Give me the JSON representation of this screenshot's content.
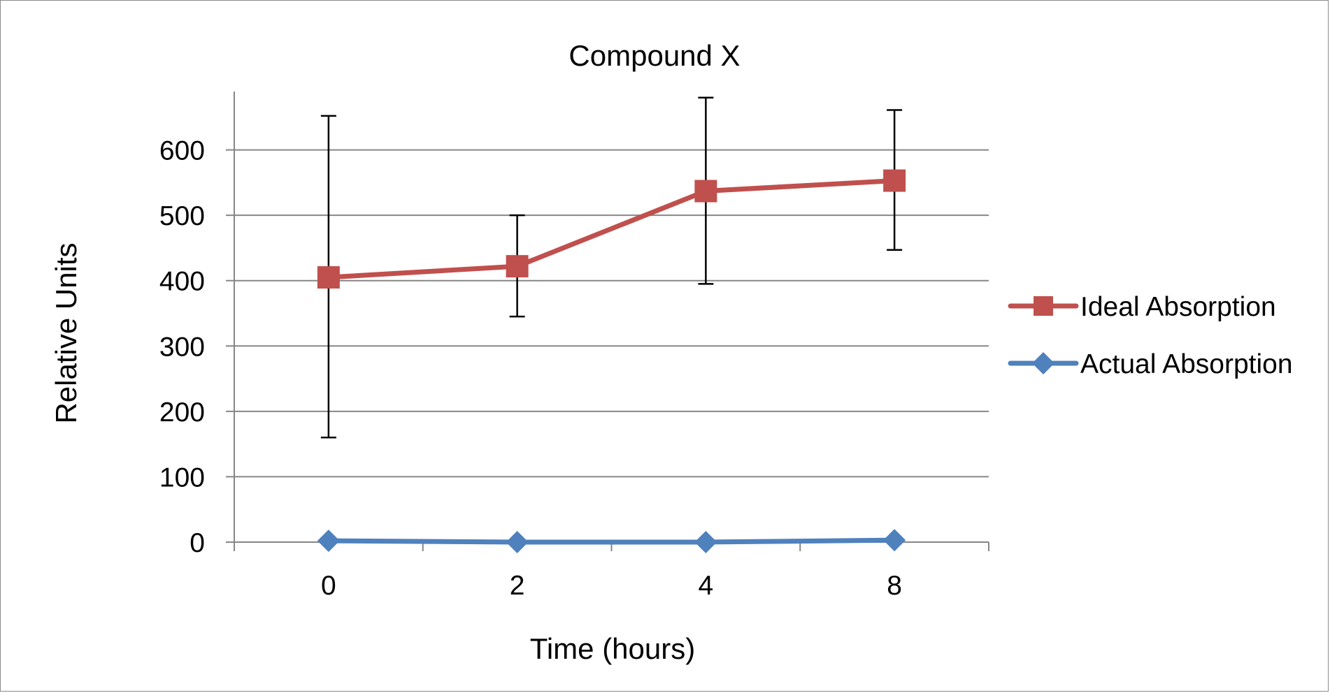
{
  "chart_data": {
    "type": "line",
    "title": "Compound X",
    "xlabel": "Time (hours)",
    "ylabel": "Relative Units",
    "categories": [
      "0",
      "2",
      "4",
      "8"
    ],
    "ylim": [
      0,
      700
    ],
    "yticks": [
      0,
      100,
      200,
      300,
      400,
      500,
      600
    ],
    "grid": true,
    "legend_position": "right",
    "series": [
      {
        "name": "Ideal Absorption",
        "color": "#c0504d",
        "marker": "square",
        "values": [
          405,
          422,
          537,
          553
        ],
        "error_low": [
          160,
          345,
          395,
          447
        ],
        "error_high": [
          652,
          500,
          680,
          661
        ]
      },
      {
        "name": "Actual Absorption",
        "color": "#4f81bd",
        "marker": "diamond",
        "values": [
          2,
          0,
          0,
          3
        ]
      }
    ]
  }
}
